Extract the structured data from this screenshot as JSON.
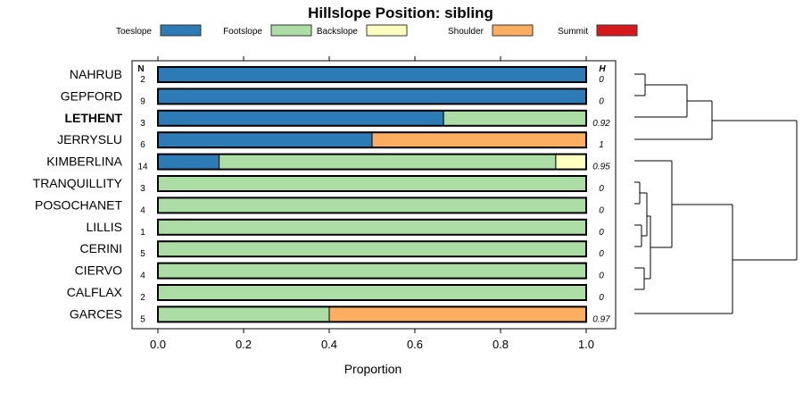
{
  "chart_data": {
    "type": "bar",
    "orientation": "horizontal-stacked",
    "title": "Hillslope Position: sibling",
    "xlabel": "Proportion",
    "xlim": [
      0,
      1
    ],
    "xticks": [
      "0.0",
      "0.2",
      "0.4",
      "0.6",
      "0.8",
      "1.0"
    ],
    "n_header": "N",
    "h_header": "H",
    "legend": [
      {
        "name": "Toeslope",
        "color": "#2C7BB6"
      },
      {
        "name": "Footslope",
        "color": "#ABDDA4"
      },
      {
        "name": "Backslope",
        "color": "#FFFFBF"
      },
      {
        "name": "Shoulder",
        "color": "#FDAE61"
      },
      {
        "name": "Summit",
        "color": "#D7191C"
      }
    ],
    "legend_position": "top",
    "categories": [
      "NAHRUB",
      "GEPFORD",
      "LETHENT",
      "JERRYSLU",
      "KIMBERLINA",
      "TRANQUILLITY",
      "POSOCHANET",
      "LILLIS",
      "CERINI",
      "CIERVO",
      "CALFLAX",
      "GARCES"
    ],
    "bold_category": "LETHENT",
    "N": [
      "2",
      "9",
      "3",
      "6",
      "14",
      "3",
      "4",
      "1",
      "5",
      "4",
      "2",
      "5"
    ],
    "H": [
      "0",
      "0",
      "0.92",
      "1",
      "0.95",
      "0",
      "0",
      "0",
      "0",
      "0",
      "0",
      "0.97"
    ],
    "series": [
      {
        "name": "Toeslope",
        "values": [
          1,
          1,
          0.667,
          0.5,
          0.143,
          0,
          0,
          0,
          0,
          0,
          0,
          0
        ]
      },
      {
        "name": "Footslope",
        "values": [
          0,
          0,
          0.333,
          0,
          0.786,
          1,
          1,
          1,
          1,
          1,
          1,
          0.4
        ]
      },
      {
        "name": "Backslope",
        "values": [
          0,
          0,
          0,
          0,
          0.071,
          0,
          0,
          0,
          0,
          0,
          0,
          0
        ]
      },
      {
        "name": "Shoulder",
        "values": [
          0,
          0,
          0,
          0.5,
          0,
          0,
          0,
          0,
          0,
          0,
          0,
          0.6
        ]
      },
      {
        "name": "Summit",
        "values": [
          0,
          0,
          0,
          0,
          0,
          0,
          0,
          0,
          0,
          0,
          0,
          0
        ]
      }
    ]
  }
}
